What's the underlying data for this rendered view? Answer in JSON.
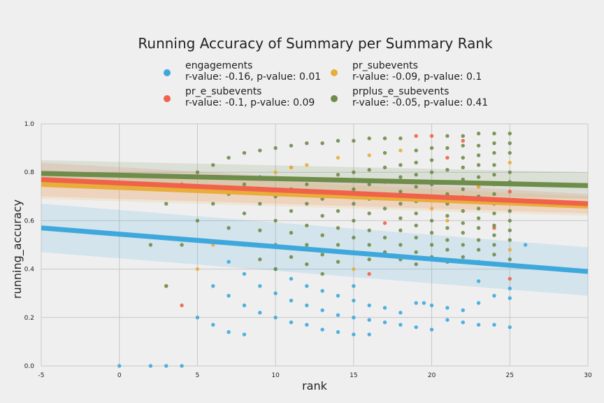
{
  "chart_data": {
    "type": "scatter",
    "title": "Running Accuracy of Summary per Summary Rank",
    "xlabel": "rank",
    "ylabel": "running_accuracy",
    "xlim": [
      -5,
      30
    ],
    "ylim": [
      0,
      1
    ],
    "xticks": [
      "-5",
      "0",
      "5",
      "10",
      "15",
      "20",
      "25",
      "30"
    ],
    "yticks": [
      "0.0",
      "0.2",
      "0.4",
      "0.6",
      "0.8",
      "1.0"
    ],
    "grid": true,
    "legend_position": "top-center",
    "series": [
      {
        "name": "engagements",
        "stats": "r-value: -0.16, p-value: 0.01",
        "color": "#3ea8dd",
        "regression": {
          "x": [
            -5,
            30
          ],
          "y": [
            0.57,
            0.39
          ]
        },
        "ci_band": {
          "x": [
            -5,
            30
          ],
          "upper": [
            0.67,
            0.49
          ],
          "lower": [
            0.47,
            0.29
          ]
        },
        "points": [
          [
            0,
            0.0
          ],
          [
            2,
            0.0
          ],
          [
            3,
            0.0
          ],
          [
            4,
            0.0
          ],
          [
            5,
            0.2
          ],
          [
            6,
            0.17
          ],
          [
            6,
            0.33
          ],
          [
            7,
            0.14
          ],
          [
            7,
            0.29
          ],
          [
            7,
            0.43
          ],
          [
            8,
            0.13
          ],
          [
            8,
            0.25
          ],
          [
            8,
            0.38
          ],
          [
            9,
            0.22
          ],
          [
            9,
            0.33
          ],
          [
            10,
            0.2
          ],
          [
            10,
            0.3
          ],
          [
            10,
            0.4
          ],
          [
            11,
            0.18
          ],
          [
            11,
            0.27
          ],
          [
            11,
            0.36
          ],
          [
            12,
            0.17
          ],
          [
            12,
            0.25
          ],
          [
            12,
            0.33
          ],
          [
            13,
            0.15
          ],
          [
            13,
            0.23
          ],
          [
            13,
            0.31
          ],
          [
            14,
            0.14
          ],
          [
            14,
            0.21
          ],
          [
            14,
            0.29
          ],
          [
            15,
            0.13
          ],
          [
            15,
            0.2
          ],
          [
            15,
            0.27
          ],
          [
            15,
            0.33
          ],
          [
            16,
            0.13
          ],
          [
            16,
            0.19
          ],
          [
            16,
            0.25
          ],
          [
            17,
            0.18
          ],
          [
            17,
            0.24
          ],
          [
            18,
            0.17
          ],
          [
            18,
            0.22
          ],
          [
            19,
            0.16
          ],
          [
            19,
            0.26
          ],
          [
            19.5,
            0.26
          ],
          [
            20,
            0.15
          ],
          [
            20,
            0.25
          ],
          [
            21,
            0.19
          ],
          [
            21,
            0.24
          ],
          [
            22,
            0.18
          ],
          [
            22,
            0.23
          ],
          [
            23,
            0.17
          ],
          [
            23,
            0.26
          ],
          [
            23,
            0.35
          ],
          [
            24,
            0.17
          ],
          [
            24,
            0.29
          ],
          [
            25,
            0.16
          ],
          [
            25,
            0.28
          ],
          [
            25,
            0.32
          ],
          [
            26,
            0.5
          ]
        ]
      },
      {
        "name": "pr_e_subevents",
        "stats": "r-value: -0.1, p-value: 0.09",
        "color": "#f0624a",
        "regression": {
          "x": [
            -5,
            30
          ],
          "y": [
            0.77,
            0.67
          ]
        },
        "ci_band": {
          "x": [
            -5,
            30
          ],
          "upper": [
            0.84,
            0.71
          ],
          "lower": [
            0.7,
            0.63
          ]
        },
        "points": [
          [
            4,
            0.25
          ],
          [
            4,
            0.75
          ],
          [
            11,
            0.82
          ],
          [
            16,
            0.38
          ],
          [
            17,
            0.59
          ],
          [
            19,
            0.95
          ],
          [
            20,
            0.95
          ],
          [
            21,
            0.86
          ],
          [
            22,
            0.93
          ],
          [
            23,
            0.74
          ],
          [
            24,
            0.57
          ],
          [
            25,
            0.36
          ],
          [
            25,
            0.72
          ]
        ]
      },
      {
        "name": "pr_subevents",
        "stats": "r-value: -0.09, p-value: 0.1",
        "color": "#e8ad3b",
        "regression": {
          "x": [
            -5,
            30
          ],
          "y": [
            0.75,
            0.66
          ]
        },
        "ci_band": {
          "x": [
            -5,
            30
          ],
          "upper": [
            0.81,
            0.7
          ],
          "lower": [
            0.69,
            0.62
          ]
        },
        "points": [
          [
            3,
            0.33
          ],
          [
            5,
            0.4
          ],
          [
            6,
            0.5
          ],
          [
            10,
            0.8
          ],
          [
            11,
            0.82
          ],
          [
            12,
            0.83
          ],
          [
            14,
            0.86
          ],
          [
            15,
            0.4
          ],
          [
            16,
            0.87
          ],
          [
            18,
            0.89
          ],
          [
            20,
            0.65
          ],
          [
            21,
            0.6
          ],
          [
            22,
            0.7
          ],
          [
            23,
            0.74
          ],
          [
            25,
            0.48
          ],
          [
            25,
            0.84
          ]
        ]
      },
      {
        "name": "prplus_e_subevents",
        "stats": "r-value: -0.05, p-value: 0.41",
        "color": "#6e8c4a",
        "regression": {
          "x": [
            -5,
            30
          ],
          "y": [
            0.795,
            0.745
          ]
        },
        "ci_band": {
          "x": [
            -5,
            30
          ],
          "upper": [
            0.85,
            0.8
          ],
          "lower": [
            0.74,
            0.69
          ]
        },
        "points": [
          [
            2,
            0.5
          ],
          [
            3,
            0.33
          ],
          [
            3,
            0.67
          ],
          [
            4,
            0.5
          ],
          [
            5,
            0.6
          ],
          [
            5,
            0.8
          ],
          [
            6,
            0.67
          ],
          [
            6,
            0.83
          ],
          [
            7,
            0.57
          ],
          [
            7,
            0.71
          ],
          [
            7,
            0.86
          ],
          [
            8,
            0.5
          ],
          [
            8,
            0.63
          ],
          [
            8,
            0.75
          ],
          [
            8,
            0.88
          ],
          [
            9,
            0.44
          ],
          [
            9,
            0.56
          ],
          [
            9,
            0.67
          ],
          [
            9,
            0.78
          ],
          [
            9,
            0.89
          ],
          [
            10,
            0.4
          ],
          [
            10,
            0.5
          ],
          [
            10,
            0.6
          ],
          [
            10,
            0.7
          ],
          [
            10,
            0.9
          ],
          [
            11,
            0.45
          ],
          [
            11,
            0.55
          ],
          [
            11,
            0.64
          ],
          [
            11,
            0.73
          ],
          [
            11,
            0.91
          ],
          [
            12,
            0.42
          ],
          [
            12,
            0.5
          ],
          [
            12,
            0.58
          ],
          [
            12,
            0.67
          ],
          [
            12,
            0.75
          ],
          [
            12,
            0.92
          ],
          [
            13,
            0.38
          ],
          [
            13,
            0.46
          ],
          [
            13,
            0.54
          ],
          [
            13,
            0.62
          ],
          [
            13,
            0.69
          ],
          [
            13,
            0.77
          ],
          [
            13,
            0.92
          ],
          [
            14,
            0.43
          ],
          [
            14,
            0.5
          ],
          [
            14,
            0.57
          ],
          [
            14,
            0.64
          ],
          [
            14,
            0.71
          ],
          [
            14,
            0.79
          ],
          [
            14,
            0.93
          ],
          [
            15,
            0.47
          ],
          [
            15,
            0.53
          ],
          [
            15,
            0.6
          ],
          [
            15,
            0.67
          ],
          [
            15,
            0.73
          ],
          [
            15,
            0.8
          ],
          [
            15,
            0.93
          ],
          [
            16,
            0.44
          ],
          [
            16,
            0.5
          ],
          [
            16,
            0.56
          ],
          [
            16,
            0.63
          ],
          [
            16,
            0.69
          ],
          [
            16,
            0.75
          ],
          [
            16,
            0.81
          ],
          [
            16,
            0.94
          ],
          [
            17,
            0.47
          ],
          [
            17,
            0.53
          ],
          [
            17,
            0.65
          ],
          [
            17,
            0.71
          ],
          [
            17,
            0.76
          ],
          [
            17,
            0.82
          ],
          [
            17,
            0.88
          ],
          [
            17,
            0.94
          ],
          [
            18,
            0.44
          ],
          [
            18,
            0.5
          ],
          [
            18,
            0.56
          ],
          [
            18,
            0.61
          ],
          [
            18,
            0.67
          ],
          [
            18,
            0.72
          ],
          [
            18,
            0.78
          ],
          [
            18,
            0.83
          ],
          [
            18,
            0.94
          ],
          [
            19,
            0.42
          ],
          [
            19,
            0.47
          ],
          [
            19,
            0.53
          ],
          [
            19,
            0.58
          ],
          [
            19,
            0.63
          ],
          [
            19,
            0.68
          ],
          [
            19,
            0.74
          ],
          [
            19,
            0.79
          ],
          [
            19,
            0.84
          ],
          [
            19,
            0.89
          ],
          [
            20,
            0.45
          ],
          [
            20,
            0.5
          ],
          [
            20,
            0.55
          ],
          [
            20,
            0.6
          ],
          [
            20,
            0.7
          ],
          [
            20,
            0.75
          ],
          [
            20,
            0.8
          ],
          [
            20,
            0.85
          ],
          [
            20,
            0.9
          ],
          [
            21,
            0.43
          ],
          [
            21,
            0.48
          ],
          [
            21,
            0.52
          ],
          [
            21,
            0.57
          ],
          [
            21,
            0.62
          ],
          [
            21,
            0.67
          ],
          [
            21,
            0.71
          ],
          [
            21,
            0.76
          ],
          [
            21,
            0.81
          ],
          [
            21,
            0.9
          ],
          [
            21,
            0.95
          ],
          [
            22,
            0.45
          ],
          [
            22,
            0.5
          ],
          [
            22,
            0.55
          ],
          [
            22,
            0.59
          ],
          [
            22,
            0.64
          ],
          [
            22,
            0.68
          ],
          [
            22,
            0.73
          ],
          [
            22,
            0.77
          ],
          [
            22,
            0.82
          ],
          [
            22,
            0.86
          ],
          [
            22,
            0.91
          ],
          [
            22,
            0.95
          ],
          [
            23,
            0.43
          ],
          [
            23,
            0.48
          ],
          [
            23,
            0.52
          ],
          [
            23,
            0.57
          ],
          [
            23,
            0.61
          ],
          [
            23,
            0.65
          ],
          [
            23,
            0.7
          ],
          [
            23,
            0.78
          ],
          [
            23,
            0.83
          ],
          [
            23,
            0.87
          ],
          [
            23,
            0.91
          ],
          [
            23,
            0.96
          ],
          [
            24,
            0.46
          ],
          [
            24,
            0.5
          ],
          [
            24,
            0.54
          ],
          [
            24,
            0.58
          ],
          [
            24,
            0.63
          ],
          [
            24,
            0.67
          ],
          [
            24,
            0.71
          ],
          [
            24,
            0.75
          ],
          [
            24,
            0.79
          ],
          [
            24,
            0.83
          ],
          [
            24,
            0.88
          ],
          [
            24,
            0.92
          ],
          [
            24,
            0.96
          ],
          [
            25,
            0.44
          ],
          [
            25,
            0.52
          ],
          [
            25,
            0.56
          ],
          [
            25,
            0.6
          ],
          [
            25,
            0.64
          ],
          [
            25,
            0.68
          ],
          [
            25,
            0.76
          ],
          [
            25,
            0.8
          ],
          [
            25,
            0.88
          ],
          [
            25,
            0.92
          ],
          [
            25,
            0.96
          ]
        ]
      }
    ]
  }
}
